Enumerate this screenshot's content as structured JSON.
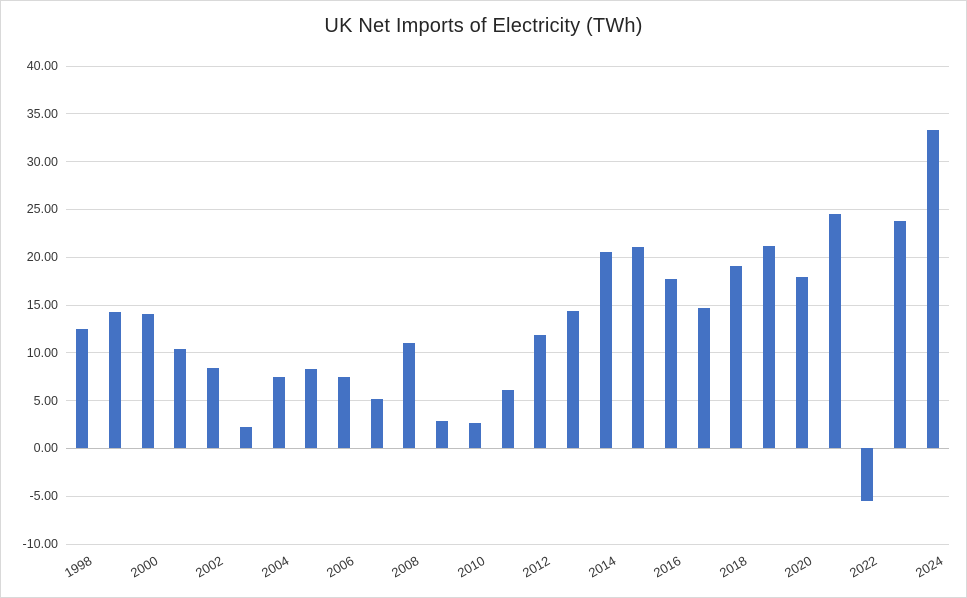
{
  "chart_data": {
    "type": "bar",
    "title": "UK Net Imports of Electricity (TWh)",
    "xlabel": "",
    "ylabel": "",
    "categories": [
      "1998",
      "1999",
      "2000",
      "2001",
      "2002",
      "2003",
      "2004",
      "2005",
      "2006",
      "2007",
      "2008",
      "2009",
      "2010",
      "2011",
      "2012",
      "2013",
      "2014",
      "2015",
      "2016",
      "2017",
      "2018",
      "2019",
      "2020",
      "2021",
      "2022",
      "2023",
      "2024"
    ],
    "values": [
      12.45,
      14.25,
      14.1,
      10.4,
      8.4,
      2.2,
      7.5,
      8.3,
      7.45,
      5.2,
      11.0,
      2.9,
      2.7,
      6.15,
      11.85,
      14.4,
      20.5,
      21.05,
      17.75,
      14.7,
      19.1,
      21.15,
      17.95,
      24.55,
      -5.5,
      23.8,
      33.35
    ],
    "ylim": [
      -10,
      40
    ],
    "y_tick_step": 5,
    "y_tick_labels": [
      "40.00",
      "35.00",
      "30.00",
      "25.00",
      "20.00",
      "15.00",
      "10.00",
      "5.00",
      "0.00",
      "-5.00",
      "-10.00"
    ],
    "x_tick_labels": [
      "1998",
      "2000",
      "2002",
      "2004",
      "2006",
      "2008",
      "2010",
      "2012",
      "2014",
      "2016",
      "2018",
      "2020",
      "2022",
      "2024"
    ],
    "grid": true,
    "legend": "none",
    "series_name": "Net imports"
  },
  "colors": {
    "bar": "#4472C4",
    "gridline": "#d9d9d9",
    "zero_axis": "#bfbfbf",
    "title_text": "#262626",
    "tick_text": "#383838",
    "background": "#ffffff",
    "border": "#d9d9d9"
  }
}
